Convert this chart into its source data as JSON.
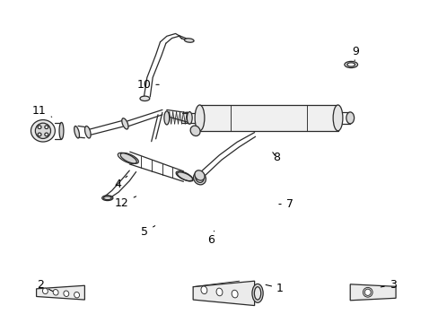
{
  "background_color": "#ffffff",
  "line_color": "#2a2a2a",
  "text_color": "#000000",
  "fig_width": 4.89,
  "fig_height": 3.6,
  "dpi": 100,
  "label_fontsize": 9.0,
  "label_positions": {
    "1": [
      0.638,
      0.108,
      0.6,
      0.12
    ],
    "2": [
      0.092,
      0.118,
      0.125,
      0.095
    ],
    "3": [
      0.895,
      0.118,
      0.862,
      0.11
    ],
    "4": [
      0.268,
      0.43,
      0.29,
      0.455
    ],
    "5": [
      0.33,
      0.282,
      0.358,
      0.305
    ],
    "6": [
      0.48,
      0.258,
      0.488,
      0.285
    ],
    "7": [
      0.66,
      0.368,
      0.63,
      0.368
    ],
    "8": [
      0.63,
      0.512,
      0.618,
      0.535
    ],
    "9": [
      0.81,
      0.84,
      0.808,
      0.812
    ],
    "10": [
      0.328,
      0.738,
      0.368,
      0.738
    ],
    "11": [
      0.09,
      0.658,
      0.118,
      0.638
    ],
    "12": [
      0.278,
      0.372,
      0.31,
      0.392
    ]
  }
}
